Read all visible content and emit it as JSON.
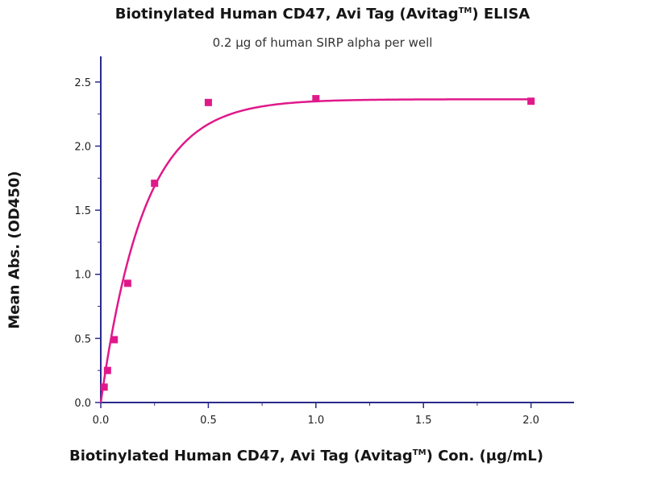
{
  "chart_data": {
    "type": "scatter",
    "title_main": "Biotinylated Human CD47, Avi Tag (Avitag",
    "title_sup": "TM",
    "title_tail": ") ELISA",
    "subtitle": "0.2 μg of human SIRP alpha per well",
    "xlabel_main": "Biotinylated Human CD47, Avi Tag (Avitag",
    "xlabel_sup": "TM",
    "xlabel_tail": ") Con. (μg/mL)",
    "ylabel": "Mean Abs. (OD450)",
    "xlim": [
      0,
      2.2
    ],
    "ylim": [
      0,
      2.7
    ],
    "xticks": [
      0,
      0.5,
      1.0,
      1.5,
      2.0
    ],
    "xtick_labels": [
      "0.0",
      "0.5",
      "1.0",
      "1.5",
      "2.0"
    ],
    "yticks": [
      0,
      0.5,
      1.0,
      1.5,
      2.0,
      2.5
    ],
    "ytick_labels": [
      "0.0",
      "0.5",
      "1.0",
      "1.5",
      "2.0",
      "2.5"
    ],
    "grid": false,
    "series": [
      {
        "color": "#e0198a",
        "points": [
          {
            "x": 0.0156,
            "y": 0.12
          },
          {
            "x": 0.0313,
            "y": 0.25
          },
          {
            "x": 0.0625,
            "y": 0.49
          },
          {
            "x": 0.125,
            "y": 0.93
          },
          {
            "x": 0.25,
            "y": 1.71
          },
          {
            "x": 0.5,
            "y": 2.34
          },
          {
            "x": 1.0,
            "y": 2.37
          },
          {
            "x": 2.0,
            "y": 2.35
          }
        ],
        "fit_curve": true
      }
    ],
    "axis_color": "#2a2a8c"
  }
}
